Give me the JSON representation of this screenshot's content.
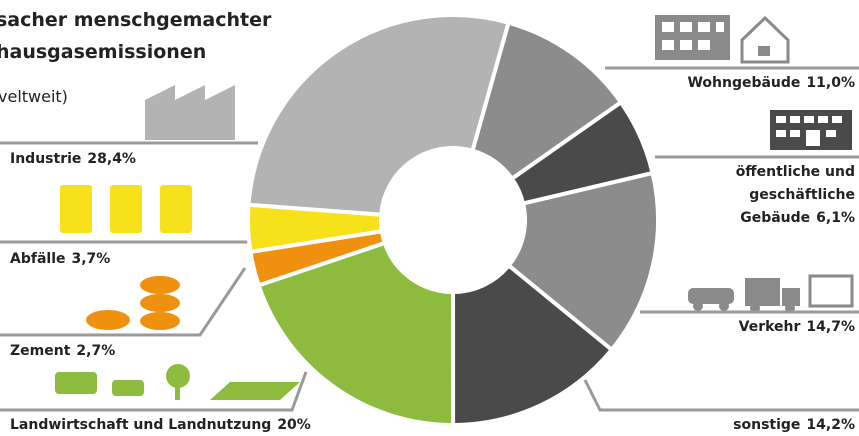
{
  "chart_data": {
    "type": "donut",
    "title_lines": [
      "sacher menschgemachter",
      "hausgasemissionen"
    ],
    "subtitle": "veltweit)",
    "categories": [
      [
        "Wohngebäude"
      ],
      [
        "öffentliche und",
        "geschäftliche",
        "Gebäude"
      ],
      [
        "Verkehr"
      ],
      [
        "sonstige"
      ],
      [
        "Landwirtschaft und Landnutzung"
      ],
      [
        "Zement"
      ],
      [
        "Abfälle"
      ],
      [
        "Industrie"
      ]
    ],
    "values": [
      11.0,
      6.1,
      14.7,
      14.2,
      20,
      2.7,
      3.7,
      28.4
    ],
    "value_labels": [
      "11,0%",
      "6,1%",
      "14,7%",
      "14,2%",
      "20%",
      "2,7%",
      "3,7%",
      "28,4%"
    ],
    "colors": [
      "#8c8c8c",
      "#4a4a4a",
      "#8c8c8c",
      "#4a4a4a",
      "#8dbb3e",
      "#f0900f",
      "#f7e11a",
      "#b3b3b3"
    ]
  }
}
